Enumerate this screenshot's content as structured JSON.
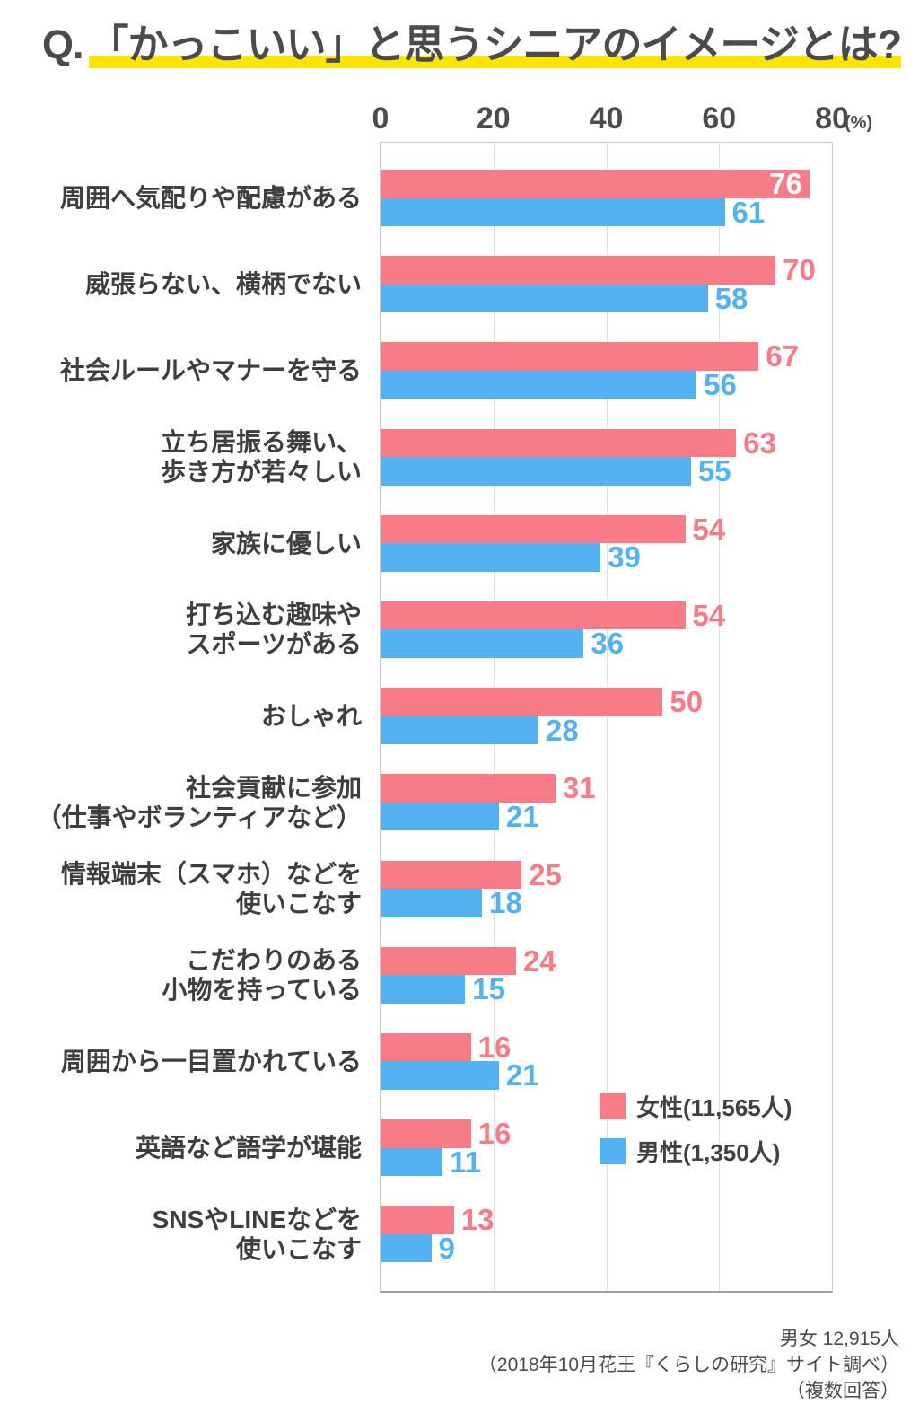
{
  "title": {
    "prefix": "Q.",
    "main": "「かっこいい」と思うシニアのイメージとは?"
  },
  "chart_data": {
    "type": "bar",
    "orientation": "horizontal",
    "title": "Q.「かっこいい」と思うシニアのイメージとは?",
    "categories": [
      "周囲へ気配りや配慮がある",
      "威張らない、横柄でない",
      "社会ルールやマナーを守る",
      "立ち居振る舞い、歩き方が若々しい",
      "家族に優しい",
      "打ち込む趣味やスポーツがある",
      "おしゃれ",
      "社会貢献に参加（仕事やボランティアなど）",
      "情報端末（スマホ）などを使いこなす",
      "こだわりのある小物を持っている",
      "周囲から一目置かれている",
      "英語など語学が堪能",
      "SNSやLINEなどを使いこなす"
    ],
    "category_lines": [
      [
        "周囲へ気配りや配慮がある"
      ],
      [
        "威張らない、横柄でない"
      ],
      [
        "社会ルールやマナーを守る"
      ],
      [
        "立ち居振る舞い、",
        "歩き方が若々しい"
      ],
      [
        "家族に優しい"
      ],
      [
        "打ち込む趣味や",
        "スポーツがある"
      ],
      [
        "おしゃれ"
      ],
      [
        "社会貢献に参加",
        "（仕事やボランティアなど）"
      ],
      [
        "情報端末（スマホ）などを",
        "使いこなす"
      ],
      [
        "こだわりのある",
        "小物を持っている"
      ],
      [
        "周囲から一目置かれている"
      ],
      [
        "英語など語学が堪能"
      ],
      [
        "SNSやLINEなどを",
        "使いこなす"
      ]
    ],
    "series": [
      {
        "name": "女性(11,565人)",
        "color": "#f87b88",
        "values": [
          76,
          70,
          67,
          63,
          54,
          54,
          50,
          31,
          25,
          24,
          16,
          16,
          13
        ]
      },
      {
        "name": "男性(1,350人)",
        "color": "#55b2f0",
        "values": [
          61,
          58,
          56,
          55,
          39,
          36,
          28,
          21,
          18,
          15,
          21,
          11,
          9
        ]
      }
    ],
    "xlim": [
      0,
      80
    ],
    "x_ticks": [
      "0",
      "20",
      "40",
      "60",
      "80"
    ],
    "x_unit": "(%)",
    "grid": true,
    "legend_position": "inside-bottom-right"
  },
  "footer": {
    "lines": [
      "男女 12,915人",
      "（2018年10月花王『くらしの研究』サイト調べ）",
      "（複数回答）"
    ]
  },
  "colors": {
    "female": "#f87b88",
    "male": "#55b2f0",
    "title_highlight": "#ffe400",
    "grid": "#dfdfdf",
    "plot_border": "#cbcbcb",
    "axis_line": "#9f9f9f"
  }
}
